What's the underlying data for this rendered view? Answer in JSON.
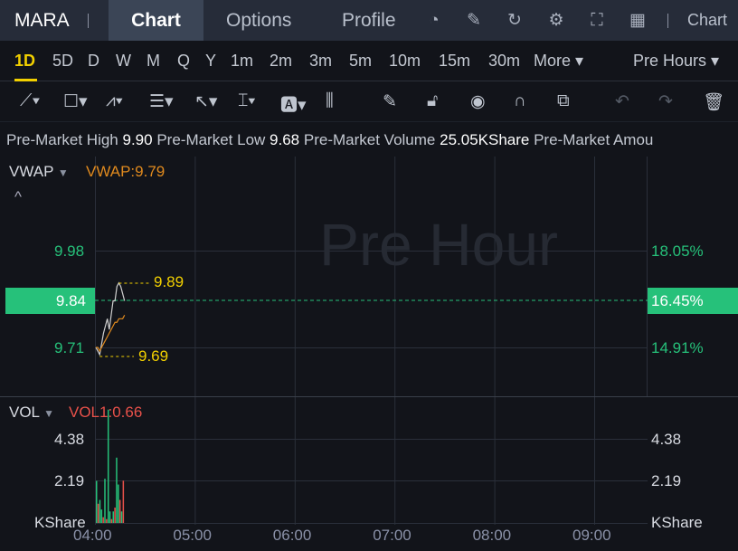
{
  "header": {
    "symbol": "MARA",
    "tabs": [
      "Chart",
      "Options",
      "Profile"
    ],
    "active_tab": "Chart",
    "right_label": "Chart",
    "icons": [
      "gauge-icon",
      "edit-icon",
      "refresh-icon",
      "gear-icon",
      "fullscreen-icon",
      "grid-icon"
    ]
  },
  "periods": {
    "items": [
      "1D",
      "5D",
      "D",
      "W",
      "M",
      "Q",
      "Y",
      "1m",
      "2m",
      "3m",
      "5m",
      "10m",
      "15m",
      "30m",
      "More"
    ],
    "active": "1D",
    "session": "Pre Hours"
  },
  "info": {
    "high_label": "Pre-Market High",
    "high": "9.90",
    "low_label": "Pre-Market Low",
    "low": "9.68",
    "volume_label": "Pre-Market Volume",
    "volume": "25.05KShare",
    "amount_label": "Pre-Market Amou"
  },
  "main": {
    "indicator": "VWAP",
    "indicator_value": "VWAP:9.79",
    "watermark": "Pre Hour",
    "y_ticks": [
      "9.98",
      "9.84",
      "9.71"
    ],
    "pct_ticks": [
      "18.05%",
      "16.45%",
      "14.91%"
    ],
    "current_price": "9.84",
    "current_pct": "16.45%",
    "high_mark": "9.89",
    "low_mark": "9.69"
  },
  "volume": {
    "indicator": "VOL",
    "indicator_value": "VOL1:0.66",
    "y_ticks": [
      "4.38",
      "2.19"
    ],
    "unit": "KShare"
  },
  "x_ticks": [
    "04:00",
    "05:00",
    "06:00",
    "07:00",
    "08:00",
    "09:00"
  ],
  "colors": {
    "up": "#26c17a",
    "down": "#e8514a",
    "accent": "#f2d000",
    "vwap": "#e08a1e",
    "price": "#d0d0d0"
  },
  "chart_data": {
    "type": "line",
    "price_minutes": [
      0,
      1,
      2,
      3,
      4,
      5,
      6,
      7,
      8,
      9,
      10,
      11,
      12,
      13,
      14,
      15
    ],
    "price": [
      9.71,
      9.7,
      9.69,
      9.72,
      9.75,
      9.77,
      9.79,
      9.76,
      9.8,
      9.84,
      9.84,
      9.88,
      9.89,
      9.88,
      9.86,
      9.84
    ],
    "vwap": [
      9.71,
      9.71,
      9.7,
      9.71,
      9.72,
      9.73,
      9.74,
      9.75,
      9.76,
      9.77,
      9.78,
      9.78,
      9.79,
      9.79,
      9.79,
      9.8
    ],
    "vol_minutes": [
      0,
      1,
      2,
      3,
      4,
      5,
      6,
      7,
      8,
      9,
      10,
      11,
      12,
      13,
      14,
      15,
      16
    ],
    "vol": [
      2.19,
      1.0,
      1.2,
      0.7,
      0.3,
      2.3,
      0.2,
      5.9,
      0.6,
      0.2,
      0.6,
      0.8,
      3.4,
      2.0,
      1.2,
      0.6,
      2.2
    ],
    "vol_up": [
      1,
      0,
      1,
      1,
      0,
      1,
      0,
      1,
      1,
      0,
      1,
      0,
      1,
      1,
      0,
      1,
      0
    ],
    "ylim": [
      9.6,
      10.05
    ],
    "vol_ylim": [
      0,
      5.9
    ]
  }
}
